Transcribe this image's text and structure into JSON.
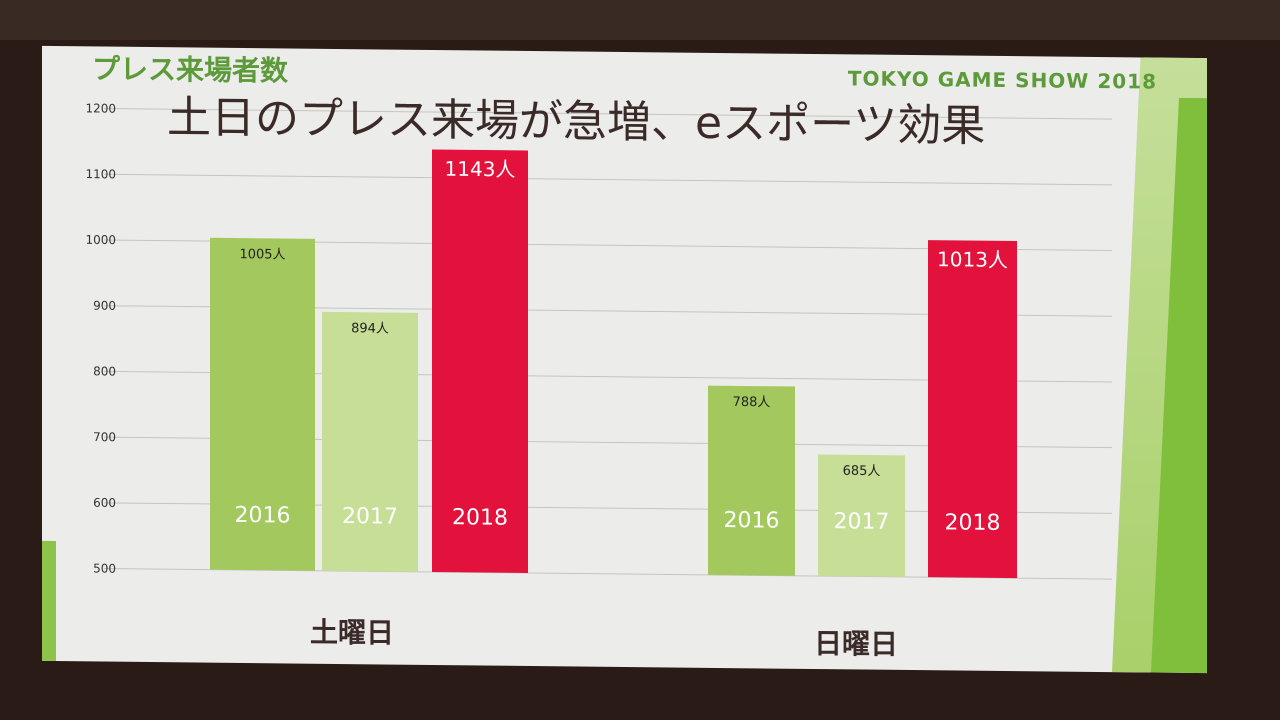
{
  "slide": {
    "section_title": "プレス来場者数",
    "event_logo": "TOKYO GAME SHOW 2018",
    "headline": "土日のプレス来場が急増、eスポーツ効果"
  },
  "chart_data": {
    "type": "bar",
    "title": "土日のプレス来場が急増、eスポーツ効果",
    "ylim": [
      500,
      1200
    ],
    "yticks": [
      "500",
      "600",
      "700",
      "800",
      "900",
      "1000",
      "1100",
      "1200"
    ],
    "grid": true,
    "unit": "人",
    "groups": [
      {
        "name": "土曜日",
        "bars": [
          {
            "year": "2016",
            "value": 1005,
            "label": "1005人",
            "color": "#a3c95e"
          },
          {
            "year": "2017",
            "value": 894,
            "label": "894人",
            "color": "#c6de96"
          },
          {
            "year": "2018",
            "value": 1143,
            "label": "1143人",
            "color": "#e3123d"
          }
        ]
      },
      {
        "name": "日曜日",
        "bars": [
          {
            "year": "2016",
            "value": 788,
            "label": "788人",
            "color": "#a3c95e"
          },
          {
            "year": "2017",
            "value": 685,
            "label": "685人",
            "color": "#c6de96"
          },
          {
            "year": "2018",
            "value": 1013,
            "label": "1013人",
            "color": "#e3123d"
          }
        ]
      }
    ]
  }
}
